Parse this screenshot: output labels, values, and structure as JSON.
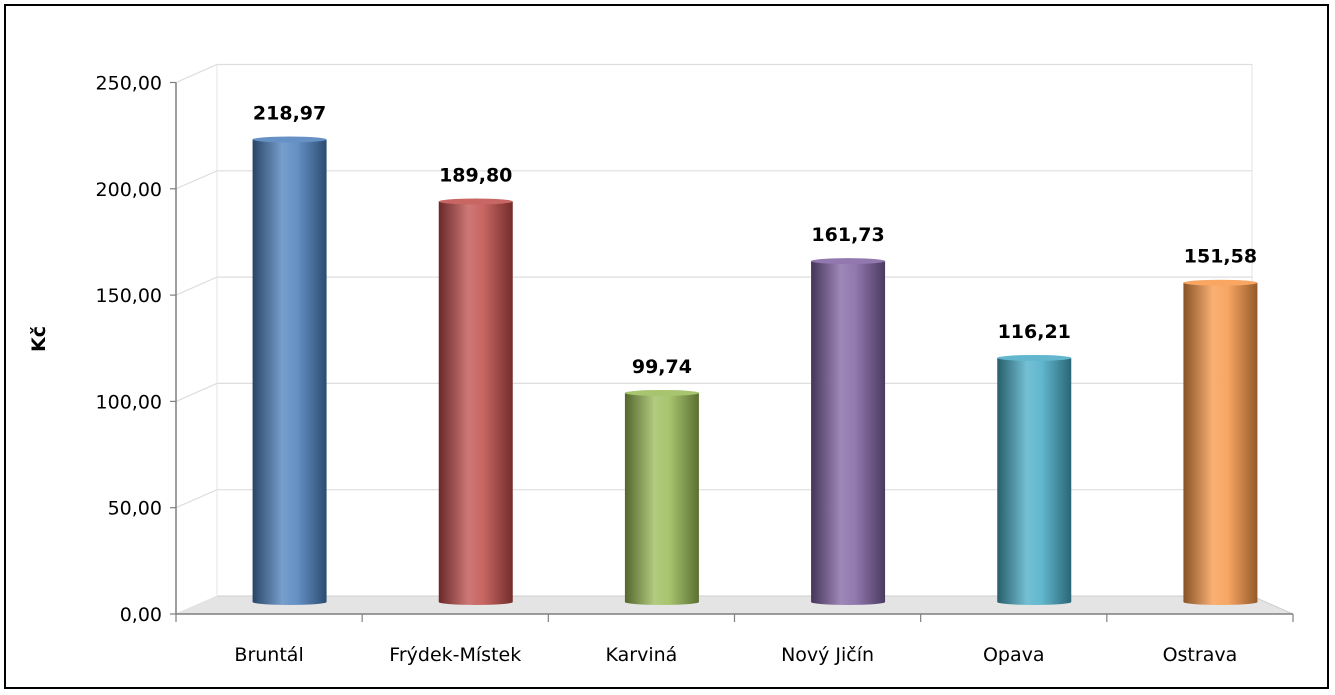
{
  "chart_data": {
    "type": "bar",
    "title": "",
    "xlabel": "",
    "ylabel": "Kč",
    "ylim": [
      0,
      250
    ],
    "ytick_step": 50,
    "ytick_labels": [
      "0,00",
      "50,00",
      "100,00",
      "150,00",
      "200,00",
      "250,00"
    ],
    "categories": [
      "Bruntál",
      "Frýdek-Místek",
      "Karviná",
      "Nový Jičín",
      "Opava",
      "Ostrava"
    ],
    "values": [
      218.97,
      189.8,
      99.74,
      161.73,
      116.21,
      151.58
    ],
    "data_labels": [
      "218,97",
      "189,80",
      "99,74",
      "161,73",
      "116,21",
      "151,58"
    ],
    "colors": [
      "#4a7ebb",
      "#be4b48",
      "#98b954",
      "#7d60a0",
      "#46aac5",
      "#f79646"
    ],
    "grid": true,
    "legend": "none"
  }
}
